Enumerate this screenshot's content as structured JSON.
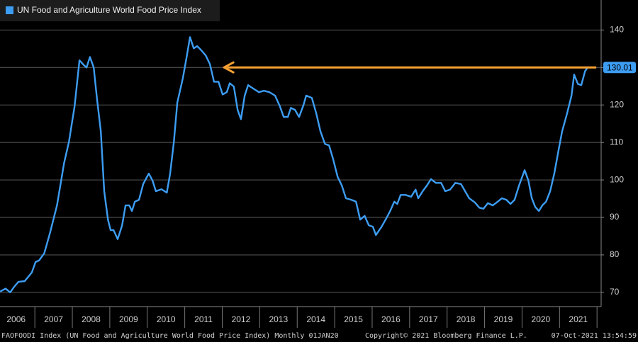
{
  "chart_data": {
    "type": "line",
    "series": [
      {
        "name": "UN Food and Agriculture World Food Price Index",
        "color": "#3d9df3",
        "x": [
          2006.07,
          2006.22,
          2006.34,
          2006.45,
          2006.56,
          2006.73,
          2006.92,
          2007.02,
          2007.11,
          2007.25,
          2007.4,
          2007.59,
          2007.78,
          2007.91,
          2008.06,
          2008.19,
          2008.31,
          2008.38,
          2008.47,
          2008.57,
          2008.66,
          2008.76,
          2008.85,
          2008.95,
          2009.02,
          2009.1,
          2009.21,
          2009.33,
          2009.42,
          2009.52,
          2009.59,
          2009.67,
          2009.78,
          2009.89,
          2010.04,
          2010.14,
          2010.23,
          2010.38,
          2010.52,
          2010.61,
          2010.71,
          2010.8,
          2010.95,
          2011.05,
          2011.14,
          2011.24,
          2011.33,
          2011.43,
          2011.56,
          2011.67,
          2011.78,
          2011.9,
          2012.01,
          2012.12,
          2012.2,
          2012.31,
          2012.41,
          2012.5,
          2012.6,
          2012.69,
          2012.84,
          2012.98,
          2013.11,
          2013.26,
          2013.41,
          2013.54,
          2013.64,
          2013.75,
          2013.83,
          2013.94,
          2014.05,
          2014.17,
          2014.24,
          2014.39,
          2014.51,
          2014.62,
          2014.74,
          2014.85,
          2014.96,
          2015.08,
          2015.19,
          2015.3,
          2015.44,
          2015.57,
          2015.68,
          2015.8,
          2015.91,
          2016.02,
          2016.1,
          2016.25,
          2016.38,
          2016.48,
          2016.59,
          2016.67,
          2016.76,
          2016.89,
          2017.04,
          2017.16,
          2017.23,
          2017.35,
          2017.46,
          2017.57,
          2017.7,
          2017.84,
          2017.95,
          2018.08,
          2018.22,
          2018.37,
          2018.48,
          2018.59,
          2018.74,
          2018.86,
          2018.97,
          2019.09,
          2019.22,
          2019.35,
          2019.46,
          2019.58,
          2019.69,
          2019.8,
          2019.92,
          2020.07,
          2020.17,
          2020.26,
          2020.35,
          2020.45,
          2020.54,
          2020.64,
          2020.75,
          2020.86,
          2020.98,
          2021.07,
          2021.2,
          2021.32,
          2021.39,
          2021.49,
          2021.58,
          2021.68,
          2021.75
        ],
        "values": [
          70.2,
          71,
          70,
          71.5,
          72.8,
          73,
          75.3,
          78.1,
          78.5,
          80.4,
          85.7,
          93.2,
          104.5,
          110.2,
          119.6,
          131.9,
          130.6,
          130,
          132.8,
          130,
          121.5,
          113,
          97,
          89.4,
          86.6,
          86.6,
          84.2,
          87.9,
          93.2,
          93.2,
          91.7,
          94.2,
          94.7,
          98.9,
          101.7,
          99.8,
          97,
          97.5,
          96.6,
          101.7,
          110.2,
          120.6,
          127.2,
          132.8,
          138.1,
          135.1,
          135.7,
          134.7,
          133.2,
          130.9,
          126.2,
          126.2,
          122.8,
          123.4,
          125.8,
          124.9,
          118.7,
          116.2,
          122.5,
          125.3,
          124.3,
          123.4,
          123.8,
          123.4,
          122.5,
          119.6,
          116.8,
          116.8,
          119.2,
          118.7,
          116.8,
          120,
          122.5,
          121.9,
          117.7,
          113,
          109.6,
          109.2,
          105.5,
          100.8,
          98.5,
          95.1,
          94.7,
          94.2,
          89.4,
          90.4,
          87.9,
          87.5,
          85.3,
          87.5,
          89.8,
          91.7,
          94.2,
          93.6,
          96,
          96,
          95.5,
          97.4,
          95.1,
          97,
          98.5,
          100.2,
          99.2,
          99.2,
          97,
          97.4,
          99.2,
          98.9,
          97,
          95.1,
          94,
          92.6,
          92.3,
          93.8,
          93.2,
          94.2,
          95.1,
          94.7,
          93.6,
          94.7,
          98.5,
          102.6,
          99.8,
          95.1,
          92.8,
          91.7,
          93.2,
          94.2,
          97,
          101.7,
          108.3,
          113,
          117.7,
          122.5,
          128.1,
          125.6,
          125.3,
          129,
          130.01
        ]
      }
    ],
    "arrow": {
      "y": 130.01,
      "x": [
        2021.98,
        2012.05
      ],
      "color": "#f5a031"
    },
    "xlim": [
      2006.07,
      2022.11
    ],
    "xticks": [
      {
        "value": 2006.5,
        "label": "2006"
      },
      {
        "value": 2007.5,
        "label": "2007"
      },
      {
        "value": 2008.5,
        "label": "2008"
      },
      {
        "value": 2009.5,
        "label": "2009"
      },
      {
        "value": 2010.5,
        "label": "2010"
      },
      {
        "value": 2011.5,
        "label": "2011"
      },
      {
        "value": 2012.5,
        "label": "2012"
      },
      {
        "value": 2013.5,
        "label": "2013"
      },
      {
        "value": 2014.5,
        "label": "2014"
      },
      {
        "value": 2015.5,
        "label": "2015"
      },
      {
        "value": 2016.5,
        "label": "2016"
      },
      {
        "value": 2017.5,
        "label": "2017"
      },
      {
        "value": 2018.5,
        "label": "2018"
      },
      {
        "value": 2019.5,
        "label": "2019"
      },
      {
        "value": 2020.5,
        "label": "2020"
      },
      {
        "value": 2021.5,
        "label": "2021"
      }
    ],
    "ylim": [
      66.2,
      148
    ],
    "yticks": [
      70,
      80,
      90,
      100,
      110,
      120,
      130,
      140
    ],
    "grid": true,
    "legend": "top-left"
  },
  "footer": {
    "left": "FAOFOODI Index (UN Food and Agriculture World Food Price Index)  Monthly 01JAN20",
    "center": "Copyright© 2021 Bloomberg Finance L.P.",
    "right": "07-Oct-2021 13:54:59"
  }
}
